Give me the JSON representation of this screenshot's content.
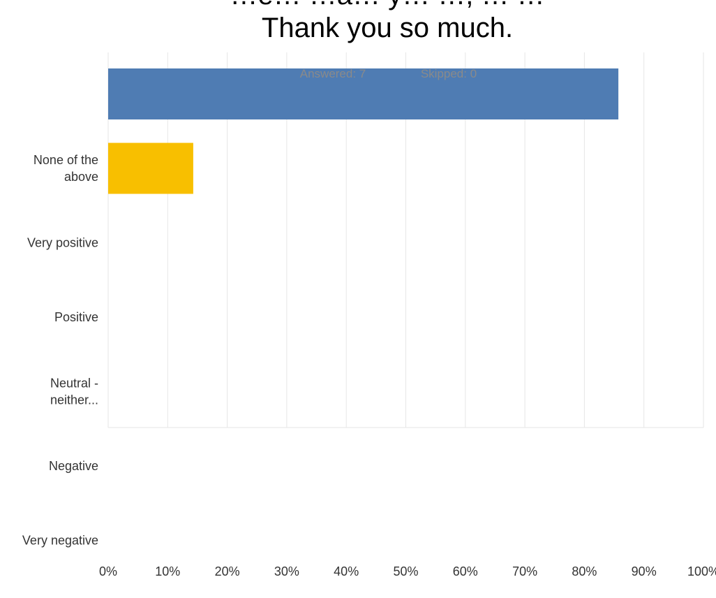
{
  "chart_data": {
    "type": "bar",
    "orientation": "horizontal",
    "title_lines": [
      "Thank you so much."
    ],
    "title_partial_top_line": "…e…  …a… y…  …, …  …",
    "summary": {
      "answered_label": "Answered: 7",
      "skipped_label": "Skipped: 0"
    },
    "categories": [
      "",
      "None of the above",
      "Very positive",
      "Positive",
      "Neutral - neither...",
      "Negative",
      "Very negative"
    ],
    "category_label_lines": [
      [],
      [
        "None of the",
        "above"
      ],
      [
        "Very positive"
      ],
      [
        "Positive"
      ],
      [
        "Neutral -",
        "neither..."
      ],
      [
        "Negative"
      ],
      [
        "Very negative"
      ]
    ],
    "values": [
      85.71,
      14.29,
      0,
      0,
      0,
      0,
      0
    ],
    "colors": [
      "#4f7cb3",
      "#f8bf00",
      "#4f7cb3",
      "#4f7cb3",
      "#4f7cb3",
      "#4f7cb3",
      "#4f7cb3"
    ],
    "xlim": [
      0,
      100
    ],
    "x_ticks": [
      0,
      10,
      20,
      30,
      40,
      50,
      60,
      70,
      80,
      90,
      100
    ],
    "x_tick_labels": [
      "0%",
      "10%",
      "20%",
      "30%",
      "40%",
      "50%",
      "60%",
      "70%",
      "80%",
      "90%",
      "100%"
    ],
    "grid": true,
    "legend": "none",
    "gridline_color": "#e6e6e6"
  }
}
